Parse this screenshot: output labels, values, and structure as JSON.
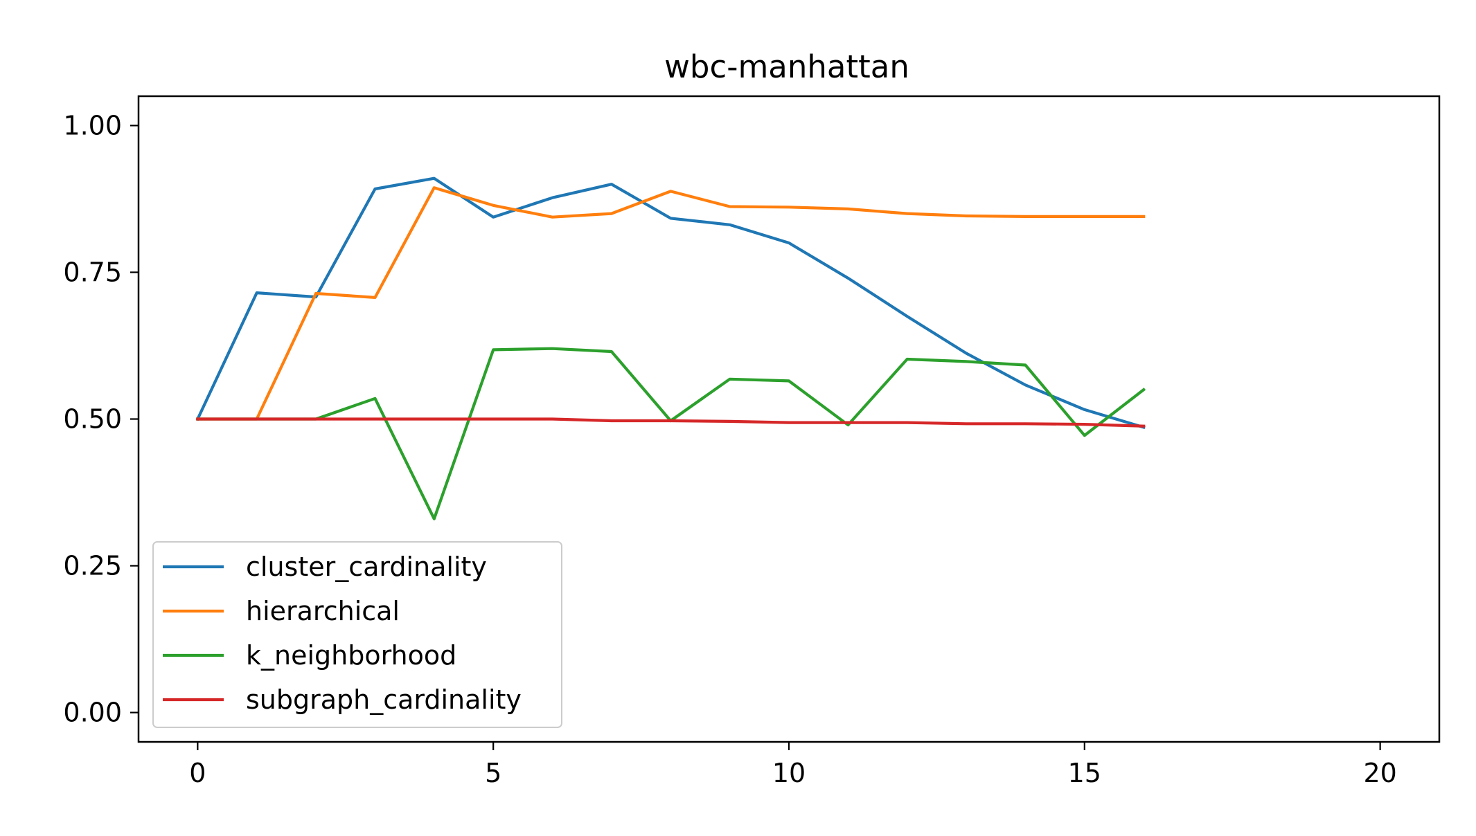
{
  "chart_data": {
    "type": "line",
    "title": "wbc-manhattan",
    "xlabel": "",
    "ylabel": "",
    "xlim": [
      -1,
      21
    ],
    "ylim": [
      -0.05,
      1.05
    ],
    "xticks": [
      0,
      5,
      10,
      15,
      20
    ],
    "xtick_labels": [
      "0",
      "5",
      "10",
      "15",
      "20"
    ],
    "yticks": [
      0.0,
      0.25,
      0.5,
      0.75,
      1.0
    ],
    "ytick_labels": [
      "0.00",
      "0.25",
      "0.50",
      "0.75",
      "1.00"
    ],
    "grid": false,
    "legend_position": "lower-left",
    "x": [
      0,
      1,
      2,
      3,
      4,
      5,
      6,
      7,
      8,
      9,
      10,
      11,
      12,
      13,
      14,
      15,
      16
    ],
    "series": [
      {
        "name": "cluster_cardinality",
        "color": "#1f77b4",
        "values": [
          0.5,
          0.715,
          0.708,
          0.892,
          0.91,
          0.844,
          0.877,
          0.9,
          0.842,
          0.831,
          0.8,
          0.74,
          0.675,
          0.612,
          0.558,
          0.516,
          0.486
        ]
      },
      {
        "name": "hierarchical",
        "color": "#ff7f0e",
        "values": [
          0.5,
          0.5,
          0.714,
          0.707,
          0.894,
          0.864,
          0.844,
          0.85,
          0.888,
          0.862,
          0.861,
          0.858,
          0.85,
          0.846,
          0.845,
          0.845,
          0.845
        ]
      },
      {
        "name": "k_neighborhood",
        "color": "#2ca02c",
        "values": [
          0.5,
          0.5,
          0.5,
          0.535,
          0.33,
          0.618,
          0.62,
          0.615,
          0.497,
          0.568,
          0.565,
          0.49,
          0.602,
          0.598,
          0.592,
          0.472,
          0.55
        ]
      },
      {
        "name": "subgraph_cardinality",
        "color": "#d62728",
        "values": [
          0.5,
          0.5,
          0.5,
          0.5,
          0.5,
          0.5,
          0.5,
          0.497,
          0.497,
          0.496,
          0.494,
          0.494,
          0.494,
          0.492,
          0.492,
          0.491,
          0.488
        ]
      }
    ]
  }
}
